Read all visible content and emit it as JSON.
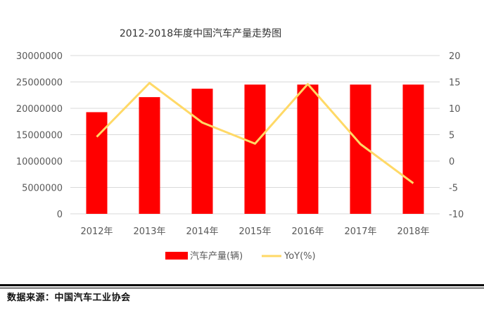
{
  "chart_data": {
    "type": "bar",
    "title": "2012-2018年度中国汽车产量走势图",
    "categories": [
      "2012年",
      "2013年",
      "2014年",
      "2015年",
      "2016年",
      "2017年",
      "2018年"
    ],
    "series": [
      {
        "name": "汽车产量(辆)",
        "type": "bar",
        "axis": "left",
        "color": "#ff0000",
        "values": [
          19270000,
          22120000,
          23720000,
          24500000,
          24500000,
          24500000,
          24500000
        ]
      },
      {
        "name": "YoY(%)",
        "type": "line",
        "axis": "right",
        "color": "#ffd966",
        "values": [
          4.6,
          14.8,
          7.3,
          3.3,
          14.6,
          3.2,
          -4.2
        ]
      }
    ],
    "y_left": {
      "min": 0,
      "max": 30000000,
      "ticks": [
        "30000000",
        "25000000",
        "20000000",
        "15000000",
        "10000000",
        "5000000",
        "0"
      ]
    },
    "y_right": {
      "min": -10,
      "max": 20,
      "ticks": [
        "20",
        "15",
        "10",
        "5",
        "0",
        "-5",
        "-10"
      ]
    },
    "grid": true,
    "legend_position": "bottom"
  },
  "footer": {
    "source": "数据来源：中国汽车工业协会"
  }
}
